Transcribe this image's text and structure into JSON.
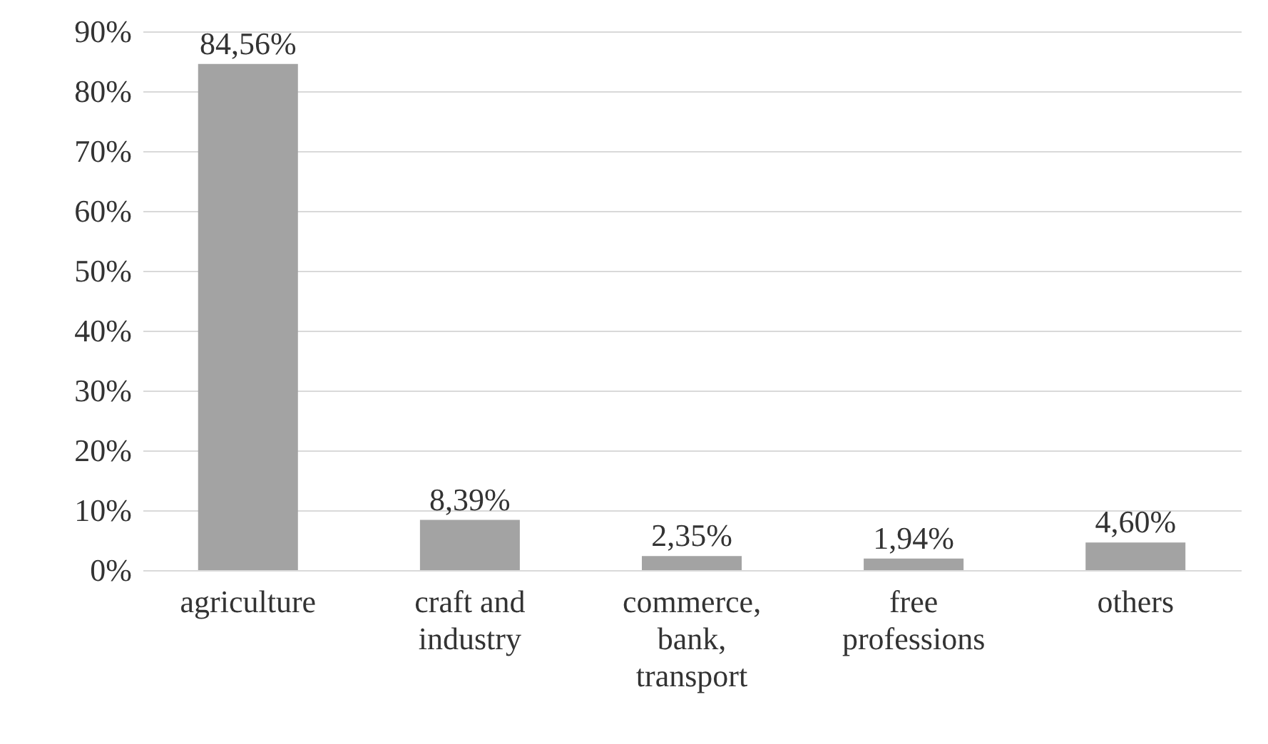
{
  "chart_data": {
    "type": "bar",
    "categories": [
      "agriculture",
      "craft and industry",
      "commerce, bank, transport",
      "free professions",
      "others"
    ],
    "values": [
      84.56,
      8.39,
      2.35,
      1.94,
      4.6
    ],
    "value_labels": [
      "84,56%",
      "8,39%",
      "2,35%",
      "1,94%",
      "4,60%"
    ],
    "color": "#a3a3a3",
    "ylim": [
      0,
      90
    ],
    "yticks": [
      {
        "value": 0,
        "label": "0%"
      },
      {
        "value": 10,
        "label": "10%"
      },
      {
        "value": 20,
        "label": "20%"
      },
      {
        "value": 30,
        "label": "30%"
      },
      {
        "value": 40,
        "label": "40%"
      },
      {
        "value": 50,
        "label": "50%"
      },
      {
        "value": 60,
        "label": "60%"
      },
      {
        "value": 70,
        "label": "70%"
      },
      {
        "value": 80,
        "label": "80%"
      },
      {
        "value": 90,
        "label": "90%"
      }
    ],
    "grid": "y"
  }
}
